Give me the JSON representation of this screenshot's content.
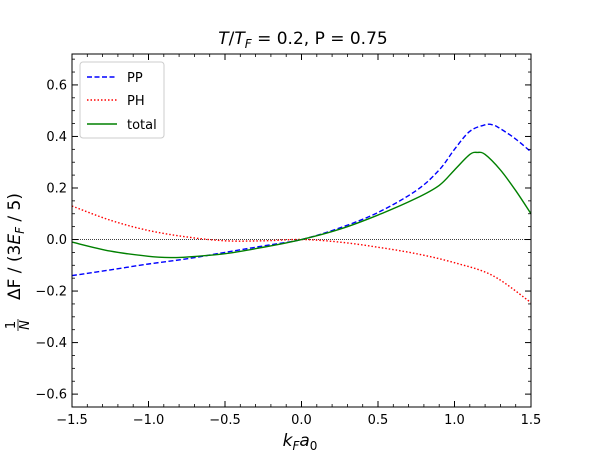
{
  "chart_data": {
    "type": "line",
    "title": "T/T_F = 0.2, P = 0.75",
    "title_parts": {
      "t": "T",
      "slash": "/",
      "tf": "T",
      "tf_sub": "F",
      "rest": " = 0.2, P = 0.75"
    },
    "xlabel": "k_F a_0",
    "xlabel_parts": {
      "k": "k",
      "k_sub": "F",
      "a": "a",
      "a_sub": "0"
    },
    "ylabel": "1/N ΔF / (3E_F / 5)",
    "ylabel_parts": {
      "frac_num": "1",
      "frac_den": "N",
      "main": "ΔF / (3",
      "e": "E",
      "e_sub": "F",
      "tail": " / 5)"
    },
    "xlim": [
      -1.5,
      1.5
    ],
    "ylim": [
      -0.65,
      0.72
    ],
    "xticks": [
      -1.5,
      -1.0,
      -0.5,
      0.0,
      0.5,
      1.0,
      1.5
    ],
    "xtick_labels": [
      "−1.5",
      "−1.0",
      "−0.5",
      "0.0",
      "0.5",
      "1.0",
      "1.5"
    ],
    "yticks": [
      -0.6,
      -0.4,
      -0.2,
      0.0,
      0.2,
      0.4,
      0.6
    ],
    "ytick_labels": [
      "−0.6",
      "−0.4",
      "−0.2",
      "0.0",
      "0.2",
      "0.4",
      "0.6"
    ],
    "grid": false,
    "legend_position": "top-left",
    "series": [
      {
        "name": "PP",
        "color": "#0000ff",
        "style": "dashed",
        "x": [
          -1.5,
          -1.25,
          -1.0,
          -0.75,
          -0.5,
          -0.25,
          0.0,
          0.25,
          0.5,
          0.75,
          0.9,
          1.0,
          1.1,
          1.2,
          1.25,
          1.3,
          1.4,
          1.5
        ],
        "y": [
          -0.14,
          -0.118,
          -0.095,
          -0.075,
          -0.05,
          -0.025,
          0.0,
          0.045,
          0.105,
          0.19,
          0.27,
          0.35,
          0.42,
          0.445,
          0.445,
          0.43,
          0.39,
          0.34
        ]
      },
      {
        "name": "PH",
        "color": "#ff0000",
        "style": "dotted",
        "x": [
          -1.5,
          -1.25,
          -1.0,
          -0.75,
          -0.5,
          -0.25,
          0.0,
          0.25,
          0.5,
          0.75,
          1.0,
          1.25,
          1.5
        ],
        "y": [
          0.13,
          0.075,
          0.035,
          0.01,
          -0.005,
          -0.005,
          0.0,
          -0.01,
          -0.03,
          -0.055,
          -0.09,
          -0.14,
          -0.245
        ]
      },
      {
        "name": "total",
        "color": "#008000",
        "style": "solid",
        "x": [
          -1.5,
          -1.25,
          -1.0,
          -0.85,
          -0.75,
          -0.5,
          -0.25,
          0.0,
          0.25,
          0.5,
          0.75,
          0.9,
          1.0,
          1.1,
          1.15,
          1.2,
          1.3,
          1.4,
          1.5
        ],
        "y": [
          -0.01,
          -0.045,
          -0.065,
          -0.07,
          -0.068,
          -0.055,
          -0.03,
          0.0,
          0.04,
          0.095,
          0.16,
          0.21,
          0.27,
          0.33,
          0.338,
          0.33,
          0.27,
          0.19,
          0.1
        ]
      }
    ]
  }
}
